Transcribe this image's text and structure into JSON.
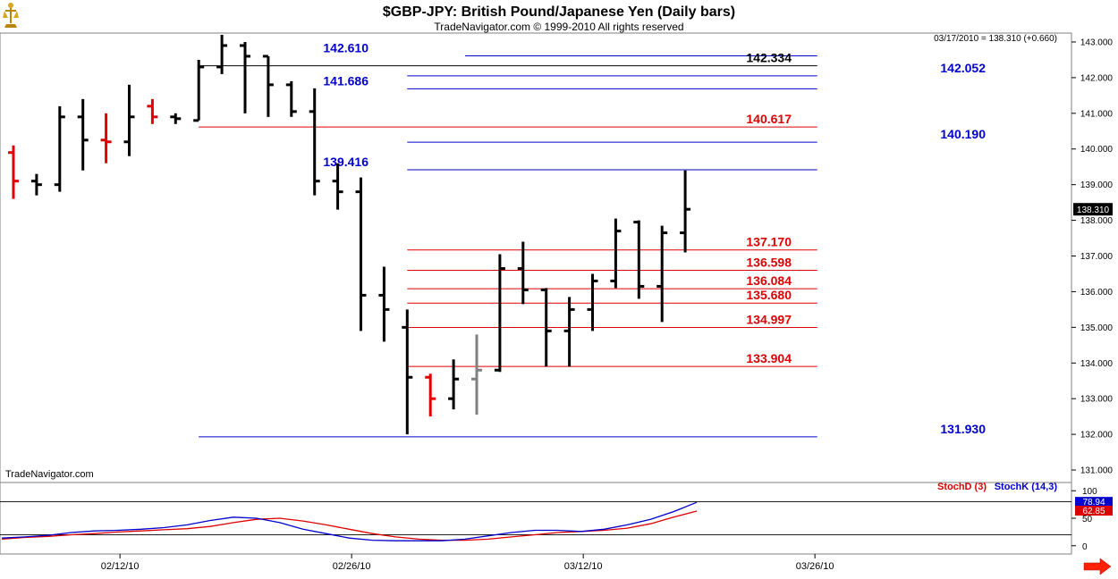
{
  "header": {
    "title": "$GBP-JPY:  British Pound/Japanese Yen  (Daily bars)",
    "subtitle": "TradeNavigator.com © 1999-2010 All rights reserved",
    "last_quote": "03/17/2010 = 138.310 (+0.660)",
    "watermark": "TradeNavigator.com"
  },
  "colors": {
    "up": "#000000",
    "down": "#e00000",
    "neutral": "#808080",
    "blue": "#0000cc",
    "red": "#dd0000",
    "black": "#000000",
    "stoch_d": "#dd0000",
    "stoch_k": "#0000cc"
  },
  "chart_data": [
    {
      "type": "ohlc",
      "name": "price",
      "xlabels": [
        {
          "label": "02/12/10",
          "index": 4.6
        },
        {
          "label": "02/26/10",
          "index": 14.6
        },
        {
          "label": "03/12/10",
          "index": 24.6
        },
        {
          "label": "03/26/10",
          "index": 34.6
        }
      ],
      "ylim": [
        130.65,
        143.25
      ],
      "yticks": [
        131,
        132,
        133,
        134,
        135,
        136,
        137,
        138,
        139,
        140,
        141,
        142,
        143
      ],
      "ytick_labels": [
        "131.000",
        "132.000",
        "133.000",
        "134.000",
        "135.000",
        "136.000",
        "137.000",
        "138.000",
        "139.000",
        "140.000",
        "141.000",
        "142.000",
        "143.000"
      ],
      "last_price_label": "138.310",
      "last_price": 138.31,
      "bars": [
        {
          "o": 139.9,
          "h": 140.1,
          "l": 138.6,
          "c": 139.1,
          "color": "down"
        },
        {
          "o": 139.1,
          "h": 139.3,
          "l": 138.7,
          "c": 139.0,
          "color": "up"
        },
        {
          "o": 139.0,
          "h": 141.2,
          "l": 138.8,
          "c": 140.9,
          "color": "up"
        },
        {
          "o": 140.9,
          "h": 141.4,
          "l": 139.4,
          "c": 140.25,
          "color": "up"
        },
        {
          "o": 140.25,
          "h": 141.0,
          "l": 139.6,
          "c": 140.2,
          "color": "down"
        },
        {
          "o": 140.2,
          "h": 141.8,
          "l": 139.8,
          "c": 140.9,
          "color": "up"
        },
        {
          "o": 141.2,
          "h": 141.4,
          "l": 140.7,
          "c": 140.9,
          "color": "down"
        },
        {
          "o": 140.9,
          "h": 141.0,
          "l": 140.7,
          "c": 140.85,
          "color": "up"
        },
        {
          "o": 140.8,
          "h": 142.5,
          "l": 140.8,
          "c": 142.3,
          "color": "up"
        },
        {
          "o": 142.3,
          "h": 143.2,
          "l": 142.1,
          "c": 142.9,
          "color": "up"
        },
        {
          "o": 142.9,
          "h": 143.0,
          "l": 141.0,
          "c": 142.6,
          "color": "up"
        },
        {
          "o": 142.6,
          "h": 142.6,
          "l": 140.9,
          "c": 141.8,
          "color": "up"
        },
        {
          "o": 141.8,
          "h": 141.9,
          "l": 140.9,
          "c": 141.05,
          "color": "up"
        },
        {
          "o": 141.05,
          "h": 141.7,
          "l": 138.7,
          "c": 139.1,
          "color": "up"
        },
        {
          "o": 139.1,
          "h": 139.6,
          "l": 138.3,
          "c": 138.8,
          "color": "up"
        },
        {
          "o": 138.8,
          "h": 139.2,
          "l": 134.9,
          "c": 135.9,
          "color": "up"
        },
        {
          "o": 135.9,
          "h": 136.7,
          "l": 134.6,
          "c": 135.5,
          "color": "up"
        },
        {
          "o": 135.0,
          "h": 135.5,
          "l": 132.0,
          "c": 133.6,
          "color": "up"
        },
        {
          "o": 133.6,
          "h": 133.7,
          "l": 132.5,
          "c": 133.0,
          "color": "down"
        },
        {
          "o": 133.0,
          "h": 134.1,
          "l": 132.7,
          "c": 133.55,
          "color": "up"
        },
        {
          "o": 133.55,
          "h": 134.8,
          "l": 132.55,
          "c": 133.8,
          "color": "neutral"
        },
        {
          "o": 133.8,
          "h": 137.05,
          "l": 133.75,
          "c": 136.65,
          "color": "up"
        },
        {
          "o": 136.65,
          "h": 137.4,
          "l": 135.65,
          "c": 136.05,
          "color": "up"
        },
        {
          "o": 136.05,
          "h": 136.1,
          "l": 133.9,
          "c": 134.9,
          "color": "up"
        },
        {
          "o": 134.9,
          "h": 135.85,
          "l": 133.9,
          "c": 135.5,
          "color": "up"
        },
        {
          "o": 135.5,
          "h": 136.5,
          "l": 134.9,
          "c": 136.3,
          "color": "up"
        },
        {
          "o": 136.3,
          "h": 138.05,
          "l": 136.1,
          "c": 137.7,
          "color": "up"
        },
        {
          "o": 137.95,
          "h": 138.0,
          "l": 135.8,
          "c": 136.15,
          "color": "up"
        },
        {
          "o": 136.15,
          "h": 137.85,
          "l": 135.15,
          "c": 137.65,
          "color": "up"
        },
        {
          "o": 137.65,
          "h": 139.4,
          "l": 137.1,
          "c": 138.31,
          "color": "up"
        }
      ],
      "levels": [
        {
          "label": "142.610",
          "price": 142.61,
          "color": "blue",
          "x0": 19.5,
          "x1": 34.7,
          "label_side": "left"
        },
        {
          "label": "142.334",
          "price": 142.334,
          "color": "black",
          "x0": 8.0,
          "x1": 34.7,
          "label_side": "mid"
        },
        {
          "label": "142.052",
          "price": 142.052,
          "color": "blue",
          "x0": 17.0,
          "x1": 34.7,
          "label_side": "right"
        },
        {
          "label": "141.686",
          "price": 141.686,
          "color": "blue",
          "x0": 17.0,
          "x1": 34.7,
          "label_side": "left"
        },
        {
          "label": "140.617",
          "price": 140.617,
          "color": "red",
          "x0": 8.0,
          "x1": 34.7,
          "label_side": "mid"
        },
        {
          "label": "140.190",
          "price": 140.19,
          "color": "blue",
          "x0": 17.0,
          "x1": 34.7,
          "label_side": "right"
        },
        {
          "label": "139.416",
          "price": 139.416,
          "color": "blue",
          "x0": 17.0,
          "x1": 34.7,
          "label_side": "left"
        },
        {
          "label": "137.170",
          "price": 137.17,
          "color": "red",
          "x0": 17.0,
          "x1": 34.7,
          "label_side": "mid"
        },
        {
          "label": "136.598",
          "price": 136.598,
          "color": "red",
          "x0": 17.0,
          "x1": 34.7,
          "label_side": "mid"
        },
        {
          "label": "136.084",
          "price": 136.084,
          "color": "red",
          "x0": 17.0,
          "x1": 34.7,
          "label_side": "mid"
        },
        {
          "label": "135.680",
          "price": 135.68,
          "color": "red",
          "x0": 17.0,
          "x1": 34.7,
          "label_side": "mid"
        },
        {
          "label": "134.997",
          "price": 134.997,
          "color": "red",
          "x0": 17.0,
          "x1": 34.7,
          "label_side": "mid"
        },
        {
          "label": "133.904",
          "price": 133.904,
          "color": "red",
          "x0": 17.0,
          "x1": 34.7,
          "label_side": "mid"
        },
        {
          "label": "131.930",
          "price": 131.93,
          "color": "blue",
          "x0": 8.0,
          "x1": 34.7,
          "label_side": "right"
        }
      ]
    },
    {
      "type": "line",
      "name": "stochastic",
      "legend": [
        "StochD (3)",
        "StochK (14,3)"
      ],
      "ylim": [
        -15,
        115
      ],
      "yticks": [
        0,
        50,
        100
      ],
      "ytick_labels": [
        "0",
        "50",
        "100"
      ],
      "reference_lines": [
        20,
        80
      ],
      "end_labels": [
        "78.94",
        "62.85"
      ],
      "series": [
        {
          "name": "StochD (3)",
          "color": "stoch_d",
          "values": [
            12,
            15,
            17,
            20,
            22,
            25,
            27,
            29,
            31,
            35,
            42,
            48,
            50,
            45,
            38,
            30,
            22,
            16,
            12,
            10,
            10,
            12,
            16,
            20,
            24,
            26,
            28,
            32,
            40,
            52,
            63
          ]
        },
        {
          "name": "StochK (14,3)",
          "color": "stoch_k",
          "values": [
            14,
            16,
            19,
            24,
            27,
            28,
            30,
            33,
            38,
            46,
            52,
            50,
            42,
            30,
            22,
            14,
            10,
            9,
            9,
            9,
            12,
            18,
            24,
            28,
            28,
            26,
            30,
            38,
            48,
            62,
            79
          ]
        }
      ]
    }
  ]
}
